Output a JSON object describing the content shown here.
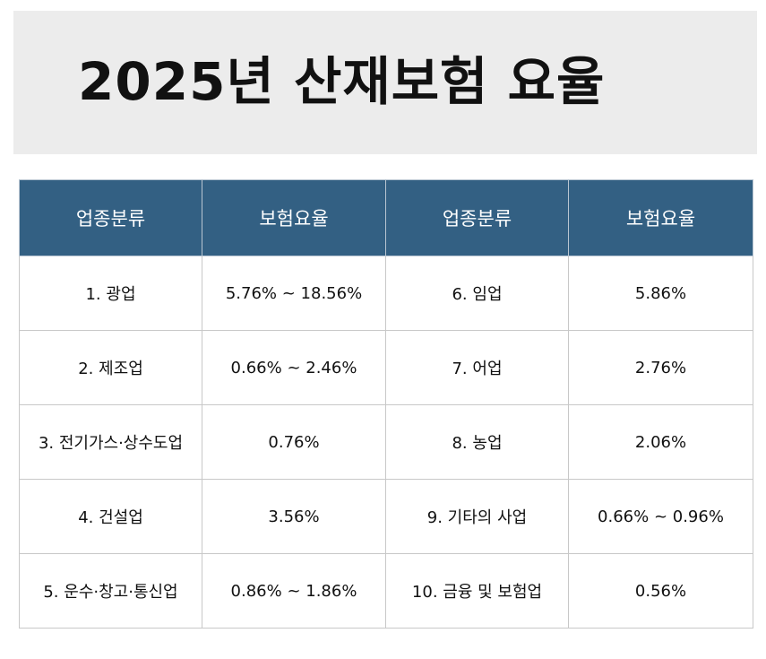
{
  "title": "2025년 산재보험 요율",
  "table": {
    "headers": [
      "업종분류",
      "보험요율",
      "업종분류",
      "보험요율"
    ],
    "rows": [
      [
        "1. 광업",
        "5.76% ~ 18.56%",
        "6. 임업",
        "5.86%"
      ],
      [
        "2. 제조업",
        "0.66% ~ 2.46%",
        "7. 어업",
        "2.76%"
      ],
      [
        "3. 전기가스·상수도업",
        "0.76%",
        "8. 농업",
        "2.06%"
      ],
      [
        "4. 건설업",
        "3.56%",
        "9. 기타의 사업",
        "0.66% ~ 0.96%"
      ],
      [
        "5. 운수·창고·통신업",
        "0.86% ~ 1.86%",
        "10. 금융 및 보험업",
        "0.56%"
      ]
    ]
  },
  "colors": {
    "header_bg": "#336083",
    "banner_bg": "#ececec"
  }
}
